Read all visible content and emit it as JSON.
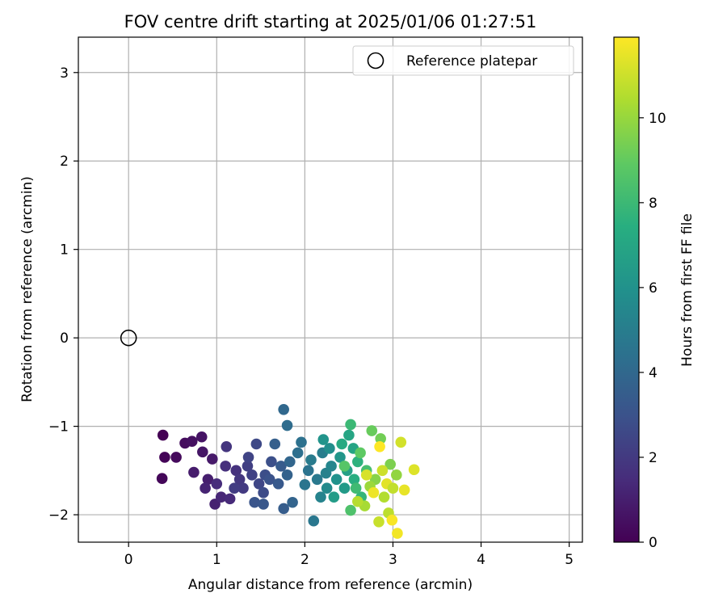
{
  "chart_data": {
    "type": "scatter",
    "title": "FOV centre drift starting at 2025/01/06 01:27:51",
    "xlabel": "Angular distance from reference (arcmin)",
    "ylabel": "Rotation from reference (arcmin)",
    "xlim": [
      -0.57,
      5.15
    ],
    "ylim": [
      -2.31,
      3.4
    ],
    "xticks": [
      0,
      1,
      2,
      3,
      4,
      5
    ],
    "yticks": [
      -2,
      -1,
      0,
      1,
      2,
      3
    ],
    "xtick_labels": [
      "0",
      "1",
      "2",
      "3",
      "4",
      "5"
    ],
    "ytick_labels": [
      "−2",
      "−1",
      "0",
      "1",
      "2",
      "3"
    ],
    "grid": true,
    "legend": {
      "location": "top-right",
      "entries": [
        "Reference platepar"
      ]
    },
    "reference_point": {
      "x": 0,
      "y": 0,
      "label": "Reference platepar"
    },
    "colorbar": {
      "label": "Hours from first FF file",
      "colormap": "viridis",
      "range": [
        0,
        11.9
      ],
      "ticks": [
        0,
        2,
        4,
        6,
        8,
        10
      ],
      "tick_labels": [
        "0",
        "2",
        "4",
        "6",
        "8",
        "10"
      ]
    },
    "series": [
      {
        "points": [
          [
            0.39,
            -1.1,
            0.0
          ],
          [
            0.41,
            -1.35,
            0.1
          ],
          [
            0.38,
            -1.59,
            0.2
          ],
          [
            0.54,
            -1.35,
            0.3
          ],
          [
            0.64,
            -1.19,
            0.4
          ],
          [
            0.72,
            -1.17,
            0.5
          ],
          [
            0.83,
            -1.12,
            0.6
          ],
          [
            0.84,
            -1.29,
            0.7
          ],
          [
            0.95,
            -1.37,
            0.8
          ],
          [
            0.74,
            -1.52,
            0.9
          ],
          [
            0.9,
            -1.6,
            1.0
          ],
          [
            0.98,
            -1.88,
            1.1
          ],
          [
            0.87,
            -1.7,
            1.2
          ],
          [
            1.05,
            -1.8,
            1.3
          ],
          [
            1.15,
            -1.82,
            1.4
          ],
          [
            1.0,
            -1.65,
            1.5
          ],
          [
            1.1,
            -1.45,
            1.6
          ],
          [
            1.22,
            -1.5,
            1.7
          ],
          [
            1.11,
            -1.23,
            1.8
          ],
          [
            1.26,
            -1.6,
            1.9
          ],
          [
            1.3,
            -1.7,
            2.0
          ],
          [
            1.2,
            -1.7,
            2.1
          ],
          [
            1.35,
            -1.45,
            2.2
          ],
          [
            1.4,
            -1.55,
            2.3
          ],
          [
            1.36,
            -1.35,
            2.4
          ],
          [
            1.48,
            -1.65,
            2.5
          ],
          [
            1.45,
            -1.2,
            2.6
          ],
          [
            1.53,
            -1.75,
            2.7
          ],
          [
            1.55,
            -1.55,
            2.8
          ],
          [
            1.62,
            -1.4,
            2.9
          ],
          [
            1.6,
            -1.6,
            3.0
          ],
          [
            1.43,
            -1.86,
            3.1
          ],
          [
            1.53,
            -1.88,
            3.2
          ],
          [
            1.7,
            -1.65,
            3.3
          ],
          [
            1.73,
            -1.45,
            3.4
          ],
          [
            1.76,
            -1.93,
            3.5
          ],
          [
            1.66,
            -1.2,
            3.6
          ],
          [
            1.8,
            -1.55,
            3.7
          ],
          [
            1.86,
            -1.86,
            3.8
          ],
          [
            1.83,
            -1.4,
            3.9
          ],
          [
            1.76,
            -0.81,
            4.0
          ],
          [
            1.8,
            -0.99,
            4.2
          ],
          [
            1.92,
            -1.3,
            4.3
          ],
          [
            1.96,
            -1.18,
            4.4
          ],
          [
            2.04,
            -1.5,
            4.5
          ],
          [
            2.0,
            -1.66,
            4.6
          ],
          [
            2.1,
            -2.07,
            4.7
          ],
          [
            2.14,
            -1.6,
            4.8
          ],
          [
            2.07,
            -1.38,
            4.9
          ],
          [
            2.2,
            -1.3,
            5.0
          ],
          [
            2.24,
            -1.53,
            5.2
          ],
          [
            2.18,
            -1.8,
            5.3
          ],
          [
            2.3,
            -1.45,
            5.4
          ],
          [
            2.25,
            -1.7,
            5.6
          ],
          [
            2.28,
            -1.25,
            5.8
          ],
          [
            2.36,
            -1.6,
            6.0
          ],
          [
            2.21,
            -1.15,
            6.1
          ],
          [
            2.4,
            -1.35,
            6.2
          ],
          [
            2.45,
            -1.7,
            6.4
          ],
          [
            2.33,
            -1.8,
            6.5
          ],
          [
            2.48,
            -1.5,
            6.7
          ],
          [
            2.55,
            -1.25,
            6.9
          ],
          [
            2.5,
            -1.1,
            7.0
          ],
          [
            2.42,
            -1.2,
            7.2
          ],
          [
            2.56,
            -1.6,
            7.4
          ],
          [
            2.6,
            -1.4,
            7.6
          ],
          [
            2.64,
            -1.8,
            7.8
          ],
          [
            2.52,
            -0.98,
            8.0
          ],
          [
            2.58,
            -1.7,
            8.1
          ],
          [
            2.7,
            -1.5,
            8.3
          ],
          [
            2.52,
            -1.95,
            8.5
          ],
          [
            2.45,
            -1.45,
            8.7
          ],
          [
            2.63,
            -1.3,
            8.9
          ],
          [
            2.76,
            -1.05,
            9.1
          ],
          [
            2.86,
            -1.14,
            9.3
          ],
          [
            2.97,
            -1.43,
            9.5
          ],
          [
            2.8,
            -1.6,
            9.7
          ],
          [
            3.04,
            -1.55,
            9.9
          ],
          [
            2.74,
            -1.68,
            10.1
          ],
          [
            2.68,
            -1.9,
            10.3
          ],
          [
            2.9,
            -1.8,
            10.5
          ],
          [
            2.95,
            -1.98,
            10.7
          ],
          [
            2.84,
            -2.08,
            10.9
          ],
          [
            3.09,
            -1.18,
            11.1
          ],
          [
            3.24,
            -1.49,
            11.3
          ],
          [
            3.13,
            -1.72,
            11.5
          ],
          [
            3.05,
            -2.21,
            11.7
          ],
          [
            2.85,
            -1.23,
            11.9
          ],
          [
            2.99,
            -2.06,
            11.8
          ],
          [
            2.78,
            -1.75,
            11.6
          ],
          [
            2.93,
            -1.65,
            11.4
          ],
          [
            2.7,
            -1.55,
            11.2
          ],
          [
            2.88,
            -1.5,
            11.0
          ],
          [
            3.0,
            -1.7,
            10.8
          ],
          [
            2.6,
            -1.85,
            10.6
          ]
        ]
      }
    ]
  }
}
